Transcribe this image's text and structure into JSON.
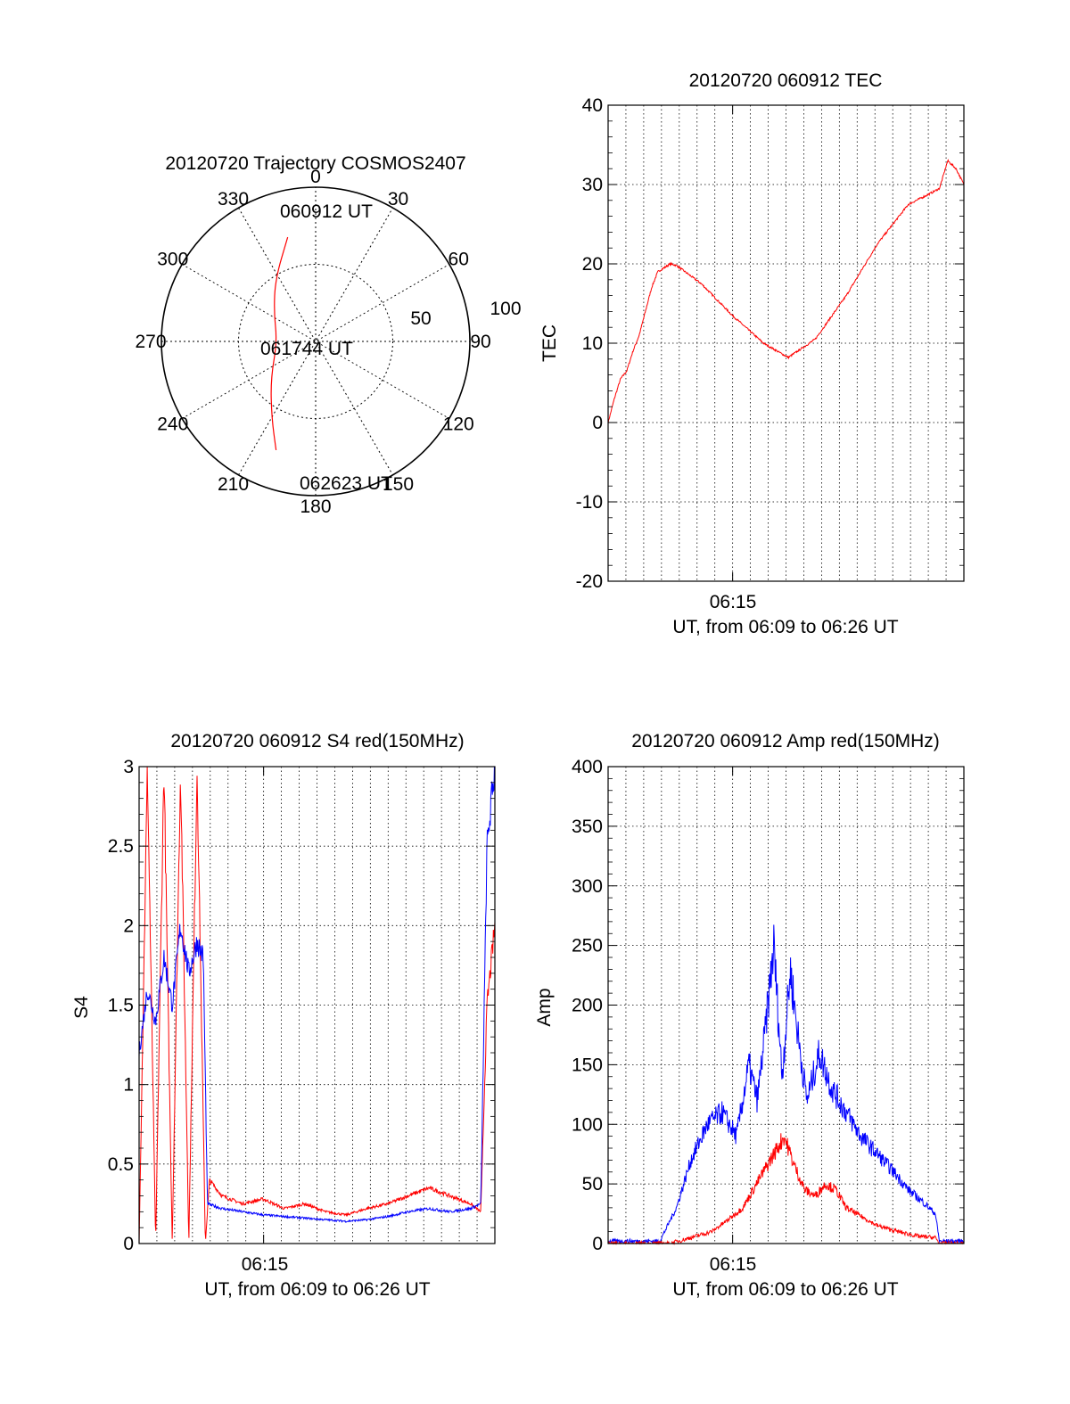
{
  "colors": {
    "red": "#ff0000",
    "blue": "#0000ff",
    "axis": "#000000"
  },
  "chart_data": [
    {
      "type": "polar",
      "title": "20120720 Trajectory COSMOS2407",
      "angle_labels": [
        "0",
        "30",
        "60",
        "90",
        "120",
        "150",
        "180",
        "210",
        "240",
        "270",
        "300",
        "330"
      ],
      "radial_labels": [
        "50",
        "100"
      ],
      "time_labels": [
        "060912 UT",
        "061744 UT",
        "062623 UT"
      ],
      "trajectory": {
        "series": "red",
        "points": [
          [
            -15,
            70
          ],
          [
            -33,
            48
          ],
          [
            -55,
            33
          ],
          [
            -90,
            25
          ],
          [
            -130,
            38
          ],
          [
            -150,
            57
          ],
          [
            -160,
            75
          ]
        ]
      }
    },
    {
      "type": "line",
      "title": "20120720 060912 TEC",
      "ylabel": "TEC",
      "xlabel": "UT, from 06:09 to 06:26 UT",
      "xtick_label": "06:15",
      "xlim": [
        0,
        17.18
      ],
      "ylim": [
        -20,
        40
      ],
      "yticks": [
        -20,
        -10,
        0,
        10,
        20,
        30,
        40
      ],
      "series": [
        {
          "color": "red",
          "x": [
            0,
            0.3,
            0.6,
            0.9,
            1.2,
            1.5,
            1.8,
            2.1,
            2.4,
            2.7,
            3.0,
            3.3,
            4.5,
            6.0,
            7.5,
            8.7,
            10.0,
            11.5,
            13.0,
            14.5,
            15.5,
            16.0,
            16.4,
            16.8,
            17.18
          ],
          "y": [
            0,
            3,
            5.5,
            6.5,
            9,
            11,
            14,
            17,
            19,
            19.5,
            20,
            19.8,
            17.5,
            13.5,
            10,
            8.2,
            10.5,
            16,
            22.5,
            27.5,
            28.8,
            29.5,
            33,
            32,
            30
          ]
        }
      ]
    },
    {
      "type": "line",
      "title": "20120720 060912 S4 red(150MHz)",
      "ylabel": "S4",
      "xlabel": "UT, from 06:09 to 06:26 UT",
      "xtick_label": "06:15",
      "xlim": [
        0,
        17.18
      ],
      "ylim": [
        0,
        3
      ],
      "yticks": [
        0,
        0.5,
        1,
        1.5,
        2,
        2.5,
        3
      ],
      "series": [
        {
          "color": "red",
          "x": [
            0,
            0.4,
            0.8,
            1.2,
            1.6,
            2.0,
            2.4,
            2.8,
            3.2,
            3.4,
            4,
            5,
            6,
            7,
            8,
            9,
            10,
            11,
            12,
            13,
            14,
            15,
            16,
            16.5,
            16.8,
            17.18
          ],
          "y": [
            0,
            3,
            0,
            3,
            0,
            3,
            0,
            3,
            0,
            0.4,
            0.3,
            0.25,
            0.28,
            0.22,
            0.25,
            0.2,
            0.18,
            0.22,
            0.25,
            0.3,
            0.35,
            0.3,
            0.25,
            0.2,
            1.5,
            2
          ]
        },
        {
          "color": "blue",
          "x": [
            0,
            0.4,
            0.8,
            1.2,
            1.6,
            2.0,
            2.4,
            2.8,
            3.1,
            3.3,
            4,
            5,
            6,
            7,
            8,
            9,
            10,
            11,
            12,
            13,
            14,
            15,
            16,
            16.5,
            16.8,
            17.18
          ],
          "y": [
            1.2,
            1.6,
            1.4,
            1.8,
            1.5,
            2.0,
            1.7,
            1.9,
            1.8,
            0.25,
            0.22,
            0.2,
            0.18,
            0.17,
            0.16,
            0.15,
            0.14,
            0.15,
            0.17,
            0.2,
            0.22,
            0.2,
            0.22,
            0.25,
            2.5,
            3
          ]
        }
      ]
    },
    {
      "type": "line",
      "title": "20120720 060912 Amp red(150MHz)",
      "ylabel": "Amp",
      "xlabel": "UT, from 06:09 to 06:26 UT",
      "xtick_label": "06:15",
      "xlim": [
        0,
        17.18
      ],
      "ylim": [
        0,
        400
      ],
      "yticks": [
        0,
        50,
        100,
        150,
        200,
        250,
        300,
        350,
        400
      ],
      "series": [
        {
          "color": "blue",
          "x": [
            0,
            2.5,
            3.3,
            4.0,
            4.8,
            5.5,
            6.2,
            6.8,
            7.2,
            7.6,
            8.0,
            8.4,
            8.8,
            9.2,
            9.6,
            10.2,
            10.8,
            11.5,
            12.2,
            13.0,
            13.8,
            14.5,
            15.2,
            15.8,
            16.0,
            17.18
          ],
          "y": [
            2,
            2,
            30,
            70,
            100,
            110,
            90,
            150,
            120,
            180,
            250,
            140,
            230,
            170,
            120,
            160,
            130,
            110,
            90,
            75,
            60,
            45,
            35,
            25,
            2,
            2
          ]
        },
        {
          "color": "red",
          "x": [
            0,
            3.0,
            4.0,
            5.0,
            5.8,
            6.5,
            7.0,
            7.5,
            8.0,
            8.5,
            9.0,
            9.5,
            10.0,
            10.5,
            11.0,
            11.5,
            12.0,
            13.0,
            14.0,
            15.0,
            15.8,
            16.0,
            17.18
          ],
          "y": [
            0,
            0,
            5,
            10,
            20,
            30,
            45,
            60,
            75,
            90,
            65,
            45,
            40,
            50,
            45,
            30,
            25,
            15,
            10,
            6,
            5,
            0,
            0
          ]
        }
      ]
    }
  ]
}
